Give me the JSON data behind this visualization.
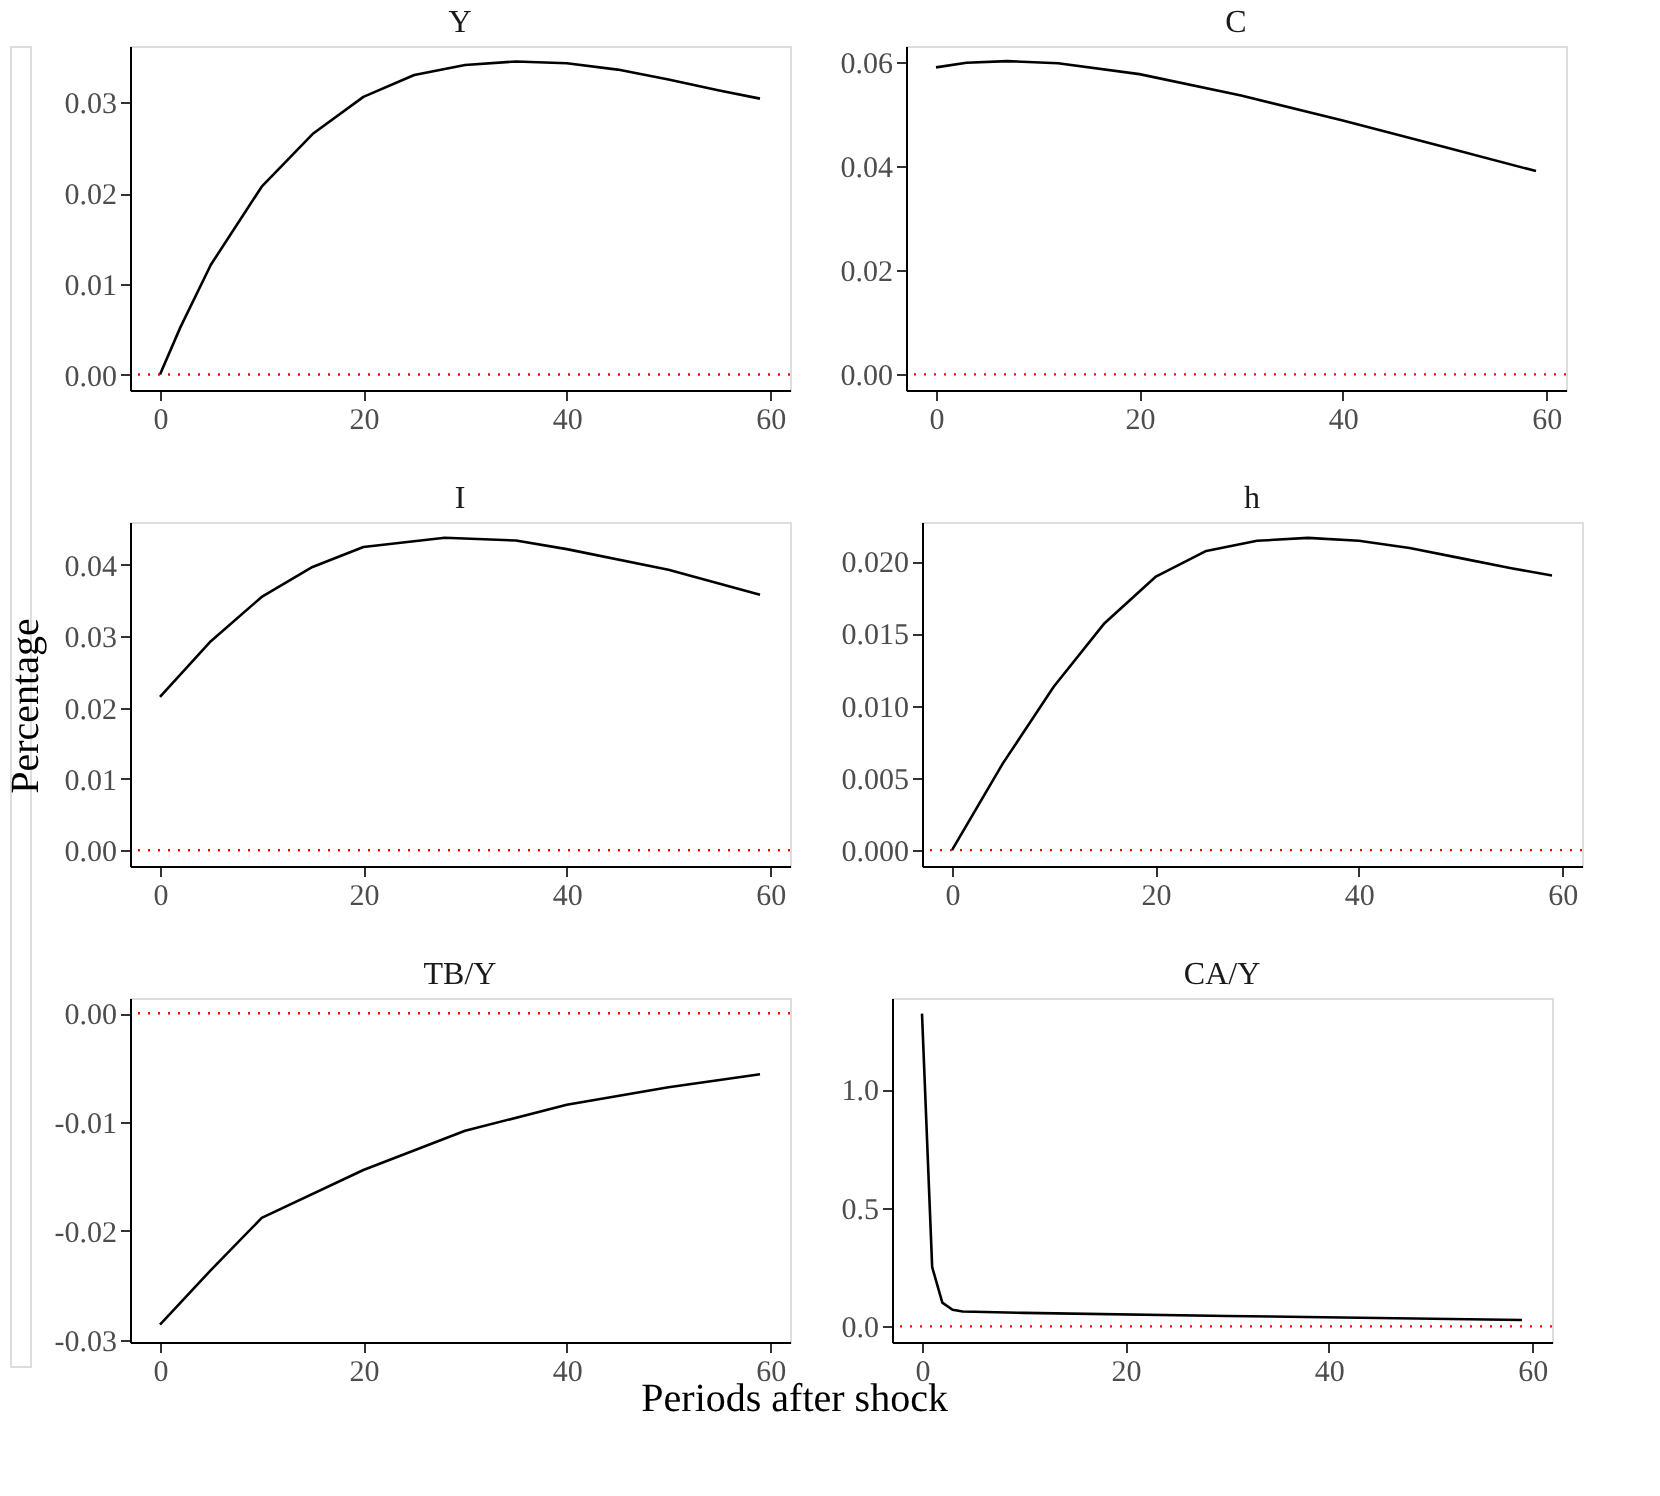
{
  "chart_data": [
    {
      "type": "line",
      "title": "Y",
      "x": [
        0,
        2,
        5,
        10,
        15,
        20,
        25,
        30,
        35,
        40,
        45,
        50,
        55,
        59
      ],
      "series": [
        {
          "color": "#000000",
          "values": [
            0,
            0.0052,
            0.0121,
            0.0207,
            0.0265,
            0.0306,
            0.033,
            0.0341,
            0.0345,
            0.0343,
            0.0336,
            0.0325,
            0.0313,
            0.0304
          ]
        }
      ],
      "xlim": [
        -2.95,
        61.95
      ],
      "xticks": [
        0,
        20,
        40,
        60
      ],
      "ylim": [
        -0.0017,
        0.0362
      ],
      "yticks": [
        {
          "value": 0,
          "label": "0.00"
        },
        0.01,
        0.02,
        0.03
      ],
      "ref_lines": [
        {
          "axis": "y",
          "value": 0,
          "color": "#ff0000",
          "line_style": "dotted"
        }
      ]
    },
    {
      "type": "line",
      "title": "C",
      "x": [
        0,
        3,
        7,
        12,
        20,
        30,
        40,
        50,
        59
      ],
      "series": [
        {
          "color": "#000000",
          "values": [
            0.0589,
            0.0598,
            0.0601,
            0.0597,
            0.0576,
            0.0535,
            0.0487,
            0.0436,
            0.039
          ]
        }
      ],
      "xlim": [
        -2.95,
        61.95
      ],
      "xticks": [
        0,
        20,
        40,
        60
      ],
      "ylim": [
        -0.003,
        0.063
      ],
      "yticks": [
        {
          "value": 0,
          "label": "0.00"
        },
        0.02,
        0.04,
        0.06
      ],
      "ref_lines": [
        {
          "axis": "y",
          "value": 0,
          "color": "#ff0000",
          "line_style": "dotted"
        }
      ]
    },
    {
      "type": "line",
      "title": "I",
      "ylabel": "Percentage",
      "x": [
        0,
        5,
        10,
        15,
        20,
        28,
        35,
        40,
        50,
        59
      ],
      "series": [
        {
          "color": "#000000",
          "values": [
            0.0215,
            0.0293,
            0.0355,
            0.0397,
            0.0425,
            0.0438,
            0.0434,
            0.0422,
            0.0393,
            0.0358
          ]
        }
      ],
      "xlim": [
        -2.95,
        61.95
      ],
      "xticks": [
        0,
        20,
        40,
        60
      ],
      "ylim": [
        -0.0022,
        0.046
      ],
      "yticks": [
        {
          "value": 0,
          "label": "0.00"
        },
        0.01,
        0.02,
        0.03,
        0.04
      ],
      "ref_lines": [
        {
          "axis": "y",
          "value": 0,
          "color": "#ff0000",
          "line_style": "dotted"
        }
      ]
    },
    {
      "type": "line",
      "title": "h",
      "x": [
        0,
        5,
        10,
        15,
        20,
        25,
        30,
        35,
        40,
        45,
        50,
        55,
        59
      ],
      "series": [
        {
          "color": "#000000",
          "values": [
            0,
            0.006,
            0.0113,
            0.0157,
            0.0189,
            0.0207,
            0.0214,
            0.0216,
            0.0214,
            0.0209,
            0.0202,
            0.0195,
            0.019
          ]
        }
      ],
      "xlim": [
        -2.95,
        61.95
      ],
      "xticks": [
        0,
        20,
        40,
        60
      ],
      "ylim": [
        -0.0011,
        0.0227
      ],
      "yticks": [
        {
          "value": 0,
          "label": "0.000"
        },
        {
          "value": 0.005,
          "label": "0.005"
        },
        {
          "value": 0.01,
          "label": "0.010"
        },
        {
          "value": 0.015,
          "label": "0.015"
        },
        {
          "value": 0.02,
          "label": "0.020"
        }
      ],
      "ref_lines": [
        {
          "axis": "y",
          "value": 0,
          "color": "#ff0000",
          "line_style": "dotted"
        }
      ]
    },
    {
      "type": "line",
      "title": "TB/Y",
      "xlabel": "Periods after shock",
      "x": [
        0,
        5,
        10,
        20,
        30,
        40,
        50,
        59
      ],
      "series": [
        {
          "color": "#000000",
          "values": [
            -0.0286,
            -0.0236,
            -0.0188,
            -0.0144,
            -0.0108,
            -0.0084,
            -0.0068,
            -0.0056
          ]
        }
      ],
      "xlim": [
        -2.95,
        61.95
      ],
      "xticks": [
        0,
        20,
        40,
        60
      ],
      "ylim": [
        -0.0302,
        0.0014
      ],
      "yticks": [
        -0.03,
        -0.02,
        -0.01,
        {
          "value": 0,
          "label": "0.00"
        }
      ],
      "ref_lines": [
        {
          "axis": "y",
          "value": 0,
          "color": "#ff0000",
          "line_style": "dotted"
        }
      ]
    },
    {
      "type": "line",
      "title": "CA/Y",
      "x": [
        0,
        1,
        2,
        3,
        4,
        10,
        30,
        59
      ],
      "series": [
        {
          "color": "#000000",
          "values": [
            1.32,
            0.25,
            0.1,
            0.07,
            0.063,
            0.057,
            0.044,
            0.027
          ]
        }
      ],
      "xlim": [
        -2.95,
        61.95
      ],
      "xticks": [
        0,
        20,
        40,
        60
      ],
      "ylim": [
        -0.066,
        1.386
      ],
      "yticks": [
        {
          "value": 0,
          "label": "0.0"
        },
        0.5,
        {
          "value": 1,
          "label": "1.0"
        }
      ],
      "ref_lines": [
        {
          "axis": "y",
          "value": 0,
          "color": "#ff0000",
          "line_style": "dotted"
        }
      ]
    }
  ]
}
